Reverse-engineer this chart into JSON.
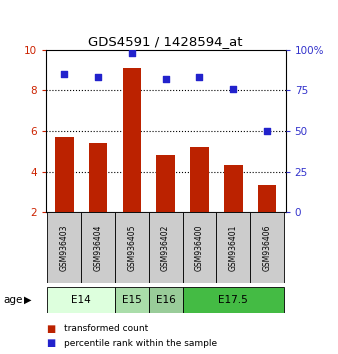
{
  "title": "GDS4591 / 1428594_at",
  "samples": [
    "GSM936403",
    "GSM936404",
    "GSM936405",
    "GSM936402",
    "GSM936400",
    "GSM936401",
    "GSM936406"
  ],
  "bar_values": [
    5.7,
    5.4,
    9.1,
    4.8,
    5.2,
    4.35,
    3.35
  ],
  "scatter_values": [
    85,
    83,
    98,
    82,
    83,
    76,
    50
  ],
  "bar_bottom": 2.0,
  "ylim_left": [
    2,
    10
  ],
  "ylim_right": [
    0,
    100
  ],
  "yticks_left": [
    2,
    4,
    6,
    8,
    10
  ],
  "yticks_right": [
    0,
    25,
    50,
    75,
    100
  ],
  "yticklabels_right": [
    "0",
    "25",
    "50",
    "75",
    "100%"
  ],
  "bar_color": "#bb2200",
  "scatter_color": "#2222cc",
  "age_groups": [
    {
      "label": "E14",
      "samples": [
        "GSM936403",
        "GSM936404"
      ],
      "color": "#ddffdd"
    },
    {
      "label": "E15",
      "samples": [
        "GSM936405"
      ],
      "color": "#aaddaa"
    },
    {
      "label": "E16",
      "samples": [
        "GSM936402"
      ],
      "color": "#99cc99"
    },
    {
      "label": "E17.5",
      "samples": [
        "GSM936400",
        "GSM936401",
        "GSM936406"
      ],
      "color": "#44bb44"
    }
  ],
  "legend_bar_label": "transformed count",
  "legend_scatter_label": "percentile rank within the sample",
  "age_label": "age",
  "background_color": "#ffffff",
  "sample_box_color": "#cccccc",
  "tick_color_left": "#cc2200",
  "tick_color_right": "#3333cc",
  "grid_yticks": [
    4,
    6,
    8
  ]
}
